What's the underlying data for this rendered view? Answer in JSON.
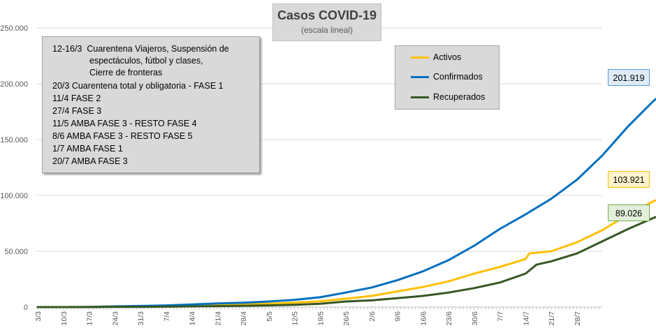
{
  "chart_data": {
    "type": "line",
    "title": "Casos COVID-19",
    "subtitle": "(escala lineal)",
    "xlabel": "",
    "ylabel": "",
    "ylim": [
      0,
      250000
    ],
    "yticks": [
      0,
      50000,
      100000,
      150000,
      200000,
      250000
    ],
    "ytick_labels": [
      "0",
      "50.000",
      "100.000",
      "150.000",
      "200.000",
      "250.000"
    ],
    "grid": true,
    "x_start": "3/3",
    "x_end": "3/8",
    "x_tick_labels": [
      "3/3",
      "10/3",
      "17/3",
      "24/3",
      "31/3",
      "7/4",
      "14/4",
      "21/4",
      "28/4",
      "5/5",
      "12/5",
      "19/5",
      "26/5",
      "2/6",
      "9/6",
      "16/6",
      "23/6",
      "30/6",
      "7/7",
      "14/7",
      "21/7",
      "28/7"
    ],
    "series": [
      {
        "name": "Activos",
        "color": "#ffc000",
        "end_label": "103.921",
        "points": [
          [
            0,
            0
          ],
          [
            7,
            20
          ],
          [
            14,
            80
          ],
          [
            21,
            600
          ],
          [
            28,
            900
          ],
          [
            35,
            1100
          ],
          [
            42,
            1600
          ],
          [
            49,
            2000
          ],
          [
            56,
            2500
          ],
          [
            63,
            3000
          ],
          [
            70,
            4000
          ],
          [
            77,
            5200
          ],
          [
            84,
            7500
          ],
          [
            91,
            10000
          ],
          [
            98,
            14000
          ],
          [
            105,
            18000
          ],
          [
            112,
            23000
          ],
          [
            119,
            30000
          ],
          [
            126,
            36000
          ],
          [
            133,
            43000
          ],
          [
            134,
            48000
          ],
          [
            140,
            50000
          ],
          [
            147,
            58000
          ],
          [
            154,
            69000
          ],
          [
            161,
            83000
          ],
          [
            168,
            95000
          ],
          [
            175,
            103921
          ]
        ]
      },
      {
        "name": "Confirmados",
        "color": "#0070c0",
        "end_label": "201.919",
        "points": [
          [
            0,
            0
          ],
          [
            7,
            20
          ],
          [
            14,
            100
          ],
          [
            21,
            600
          ],
          [
            28,
            1000
          ],
          [
            35,
            1500
          ],
          [
            42,
            2300
          ],
          [
            49,
            3300
          ],
          [
            56,
            3900
          ],
          [
            63,
            5000
          ],
          [
            70,
            6500
          ],
          [
            77,
            8800
          ],
          [
            84,
            13000
          ],
          [
            91,
            17500
          ],
          [
            98,
            24000
          ],
          [
            105,
            32000
          ],
          [
            112,
            42000
          ],
          [
            119,
            55000
          ],
          [
            126,
            70000
          ],
          [
            133,
            83000
          ],
          [
            140,
            97000
          ],
          [
            147,
            114000
          ],
          [
            154,
            136000
          ],
          [
            161,
            162000
          ],
          [
            168,
            185000
          ],
          [
            175,
            201919
          ]
        ]
      },
      {
        "name": "Recuperados",
        "color": "#375623",
        "end_label": "89.026",
        "points": [
          [
            0,
            0
          ],
          [
            14,
            0
          ],
          [
            21,
            100
          ],
          [
            28,
            200
          ],
          [
            35,
            400
          ],
          [
            42,
            600
          ],
          [
            49,
            900
          ],
          [
            56,
            1200
          ],
          [
            63,
            1500
          ],
          [
            70,
            2000
          ],
          [
            77,
            3000
          ],
          [
            84,
            5000
          ],
          [
            91,
            6000
          ],
          [
            98,
            8000
          ],
          [
            105,
            10000
          ],
          [
            112,
            13000
          ],
          [
            119,
            17000
          ],
          [
            126,
            22000
          ],
          [
            133,
            30000
          ],
          [
            136,
            38000
          ],
          [
            140,
            41000
          ],
          [
            147,
            48000
          ],
          [
            154,
            59000
          ],
          [
            161,
            70000
          ],
          [
            168,
            80000
          ],
          [
            175,
            89026
          ]
        ]
      }
    ]
  },
  "notes": [
    {
      "date": "12-16/3",
      "text": "Cuarentena Viajeros, Suspensión de"
    },
    {
      "date": "",
      "text": "espectáculos, fútbol y clases,"
    },
    {
      "date": "",
      "text": "Cierre de fronteras"
    },
    {
      "date": "20/3",
      "text": "Cuarentena total y obligatoria - FASE 1"
    },
    {
      "date": "11/4",
      "text": "FASE 2"
    },
    {
      "date": "27/4",
      "text": "FASE 3"
    },
    {
      "date": "11/5",
      "text": "AMBA FASE 3 - RESTO FASE 4"
    },
    {
      "date": "8/6",
      "text": "AMBA FASE 3 - RESTO FASE 5"
    },
    {
      "date": "1/7",
      "text": "AMBA FASE 1"
    },
    {
      "date": "20/7",
      "text": "AMBA FASE 3"
    }
  ]
}
